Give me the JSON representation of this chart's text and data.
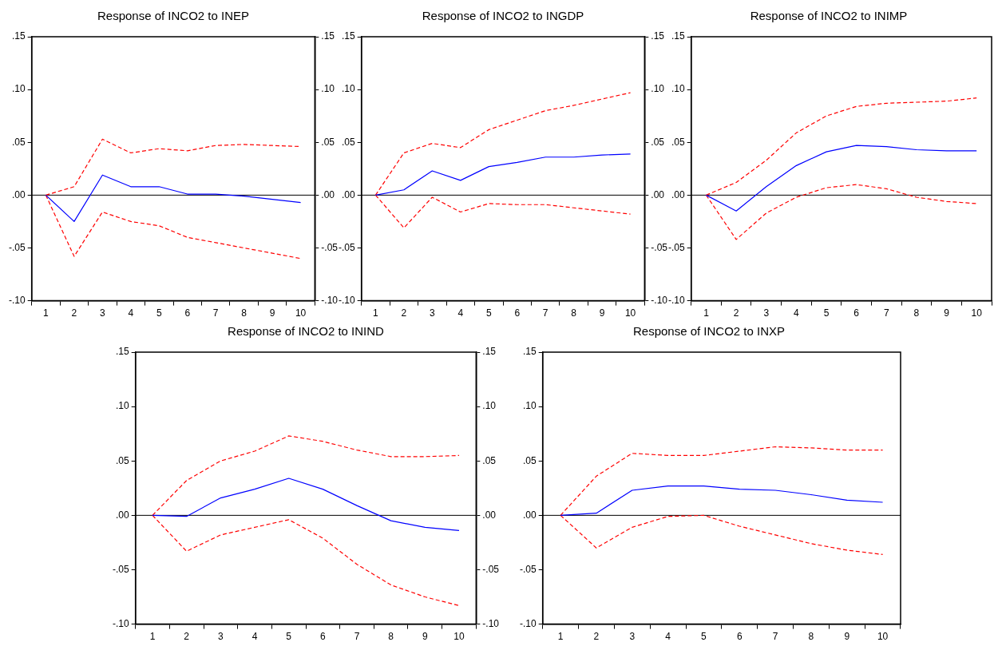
{
  "chart_data": [
    {
      "type": "line",
      "title": "Response of INCO2 to INEP",
      "categories": [
        "1",
        "2",
        "3",
        "4",
        "5",
        "6",
        "7",
        "8",
        "9",
        "10"
      ],
      "ylim": [
        -0.1,
        0.15
      ],
      "yticks": [
        {
          "value": -0.1,
          "label": "-.10"
        },
        {
          "value": -0.05,
          "label": "-.05"
        },
        {
          "value": 0,
          "label": ".00"
        },
        {
          "value": 0.05,
          "label": ".05"
        },
        {
          "value": 0.1,
          "label": ".10"
        },
        {
          "value": 0.15,
          "label": ".15"
        }
      ],
      "y2lim": [
        -0.1,
        0.15
      ],
      "y2ticks": [
        {
          "value": -0.1,
          "label": "-.10"
        },
        {
          "value": -0.05,
          "label": "-.05"
        },
        {
          "value": 0,
          "label": ".00"
        },
        {
          "value": 0.05,
          "label": ".05"
        },
        {
          "value": 0.1,
          "label": ".10"
        },
        {
          "value": 0.15,
          "label": ".15"
        }
      ],
      "legend": false,
      "grid": false,
      "marker": "none",
      "ref_lines": [
        {
          "axis": "y",
          "value": 0,
          "color": "#000000"
        }
      ],
      "series": [
        {
          "color": "#0000ff",
          "line_style": "solid",
          "values": [
            0,
            -0.025,
            0.019,
            0.008,
            0.008,
            0.001,
            0.001,
            -0.001,
            -0.004,
            -0.007
          ]
        },
        {
          "color": "#ff0000",
          "line_style": "dashed",
          "values": [
            0,
            0.008,
            0.053,
            0.04,
            0.044,
            0.042,
            0.047,
            0.048,
            0.047,
            0.046
          ]
        },
        {
          "color": "#ff0000",
          "line_style": "dashed",
          "values": [
            0,
            -0.058,
            -0.016,
            -0.025,
            -0.029,
            -0.04,
            -0.045,
            -0.05,
            -0.055,
            -0.06
          ]
        }
      ]
    },
    {
      "type": "line",
      "title": "Response of INCO2 to INGDP",
      "categories": [
        "1",
        "2",
        "3",
        "4",
        "5",
        "6",
        "7",
        "8",
        "9",
        "10"
      ],
      "ylim": [
        -0.1,
        0.15
      ],
      "yticks": [
        {
          "value": -0.1,
          "label": "-.10"
        },
        {
          "value": -0.05,
          "label": "-.05"
        },
        {
          "value": 0,
          "label": ".00"
        },
        {
          "value": 0.05,
          "label": ".05"
        },
        {
          "value": 0.1,
          "label": ".10"
        },
        {
          "value": 0.15,
          "label": ".15"
        }
      ],
      "y2lim": [
        -0.1,
        0.15
      ],
      "y2ticks": [
        {
          "value": -0.1,
          "label": "-.10"
        },
        {
          "value": -0.05,
          "label": "-.05"
        },
        {
          "value": 0,
          "label": ".00"
        },
        {
          "value": 0.05,
          "label": ".05"
        },
        {
          "value": 0.1,
          "label": ".10"
        },
        {
          "value": 0.15,
          "label": ".15"
        }
      ],
      "legend": false,
      "grid": false,
      "marker": "none",
      "ref_lines": [
        {
          "axis": "y",
          "value": 0,
          "color": "#000000"
        }
      ],
      "series": [
        {
          "color": "#0000ff",
          "line_style": "solid",
          "values": [
            0,
            0.005,
            0.023,
            0.014,
            0.027,
            0.031,
            0.036,
            0.036,
            0.038,
            0.039
          ]
        },
        {
          "color": "#ff0000",
          "line_style": "dashed",
          "values": [
            0,
            0.04,
            0.049,
            0.045,
            0.062,
            0.071,
            0.08,
            0.085,
            0.091,
            0.097
          ]
        },
        {
          "color": "#ff0000",
          "line_style": "dashed",
          "values": [
            0,
            -0.031,
            -0.002,
            -0.016,
            -0.008,
            -0.009,
            -0.009,
            -0.012,
            -0.015,
            -0.018
          ]
        }
      ]
    },
    {
      "type": "line",
      "title": "Response of INCO2 to INIMP",
      "categories": [
        "1",
        "2",
        "3",
        "4",
        "5",
        "6",
        "7",
        "8",
        "9",
        "10"
      ],
      "ylim": [
        -0.1,
        0.15
      ],
      "yticks": [
        {
          "value": -0.1,
          "label": "-.10"
        },
        {
          "value": -0.05,
          "label": "-.05"
        },
        {
          "value": 0,
          "label": ".00"
        },
        {
          "value": 0.05,
          "label": ".05"
        },
        {
          "value": 0.1,
          "label": ".10"
        },
        {
          "value": 0.15,
          "label": ".15"
        }
      ],
      "legend": false,
      "grid": false,
      "marker": "none",
      "ref_lines": [
        {
          "axis": "y",
          "value": 0,
          "color": "#000000"
        }
      ],
      "series": [
        {
          "color": "#0000ff",
          "line_style": "solid",
          "values": [
            0,
            -0.015,
            0.008,
            0.028,
            0.041,
            0.047,
            0.046,
            0.043,
            0.042,
            0.042
          ]
        },
        {
          "color": "#ff0000",
          "line_style": "dashed",
          "values": [
            0,
            0.012,
            0.033,
            0.059,
            0.075,
            0.084,
            0.087,
            0.088,
            0.089,
            0.092
          ]
        },
        {
          "color": "#ff0000",
          "line_style": "dashed",
          "values": [
            0,
            -0.042,
            -0.017,
            -0.002,
            0.007,
            0.01,
            0.006,
            -0.002,
            -0.006,
            -0.008
          ]
        }
      ]
    },
    {
      "type": "line",
      "title": "Response of INCO2 to ININD",
      "categories": [
        "1",
        "2",
        "3",
        "4",
        "5",
        "6",
        "7",
        "8",
        "9",
        "10"
      ],
      "ylim": [
        -0.1,
        0.15
      ],
      "yticks": [
        {
          "value": -0.1,
          "label": "-.10"
        },
        {
          "value": -0.05,
          "label": "-.05"
        },
        {
          "value": 0,
          "label": ".00"
        },
        {
          "value": 0.05,
          "label": ".05"
        },
        {
          "value": 0.1,
          "label": ".10"
        },
        {
          "value": 0.15,
          "label": ".15"
        }
      ],
      "y2lim": [
        -0.1,
        0.15
      ],
      "y2ticks": [
        {
          "value": -0.1,
          "label": "-.10"
        },
        {
          "value": -0.05,
          "label": "-.05"
        },
        {
          "value": 0,
          "label": ".00"
        },
        {
          "value": 0.05,
          "label": ".05"
        },
        {
          "value": 0.1,
          "label": ".10"
        },
        {
          "value": 0.15,
          "label": ".15"
        }
      ],
      "legend": false,
      "grid": false,
      "marker": "none",
      "ref_lines": [
        {
          "axis": "y",
          "value": 0,
          "color": "#000000"
        }
      ],
      "series": [
        {
          "color": "#0000ff",
          "line_style": "solid",
          "values": [
            0,
            -0.001,
            0.016,
            0.024,
            0.034,
            0.024,
            0.009,
            -0.005,
            -0.011,
            -0.014
          ]
        },
        {
          "color": "#ff0000",
          "line_style": "dashed",
          "values": [
            0,
            0.032,
            0.05,
            0.059,
            0.073,
            0.068,
            0.06,
            0.054,
            0.054,
            0.055
          ]
        },
        {
          "color": "#ff0000",
          "line_style": "dashed",
          "values": [
            0,
            -0.033,
            -0.018,
            -0.011,
            -0.004,
            -0.021,
            -0.045,
            -0.064,
            -0.075,
            -0.083
          ]
        }
      ]
    },
    {
      "type": "line",
      "title": "Response of INCO2 to INXP",
      "categories": [
        "1",
        "2",
        "3",
        "4",
        "5",
        "6",
        "7",
        "8",
        "9",
        "10"
      ],
      "ylim": [
        -0.1,
        0.15
      ],
      "yticks": [
        {
          "value": -0.1,
          "label": "-.10"
        },
        {
          "value": -0.05,
          "label": "-.05"
        },
        {
          "value": 0,
          "label": ".00"
        },
        {
          "value": 0.05,
          "label": ".05"
        },
        {
          "value": 0.1,
          "label": ".10"
        },
        {
          "value": 0.15,
          "label": ".15"
        }
      ],
      "legend": false,
      "grid": false,
      "marker": "none",
      "ref_lines": [
        {
          "axis": "y",
          "value": 0,
          "color": "#000000"
        }
      ],
      "series": [
        {
          "color": "#0000ff",
          "line_style": "solid",
          "values": [
            0,
            0.002,
            0.023,
            0.027,
            0.027,
            0.024,
            0.023,
            0.019,
            0.014,
            0.012
          ]
        },
        {
          "color": "#ff0000",
          "line_style": "dashed",
          "values": [
            0,
            0.036,
            0.057,
            0.055,
            0.055,
            0.059,
            0.063,
            0.062,
            0.06,
            0.06
          ]
        },
        {
          "color": "#ff0000",
          "line_style": "dashed",
          "values": [
            0,
            -0.03,
            -0.011,
            -0.001,
            0.0,
            -0.01,
            -0.018,
            -0.026,
            -0.032,
            -0.036
          ]
        }
      ]
    }
  ]
}
